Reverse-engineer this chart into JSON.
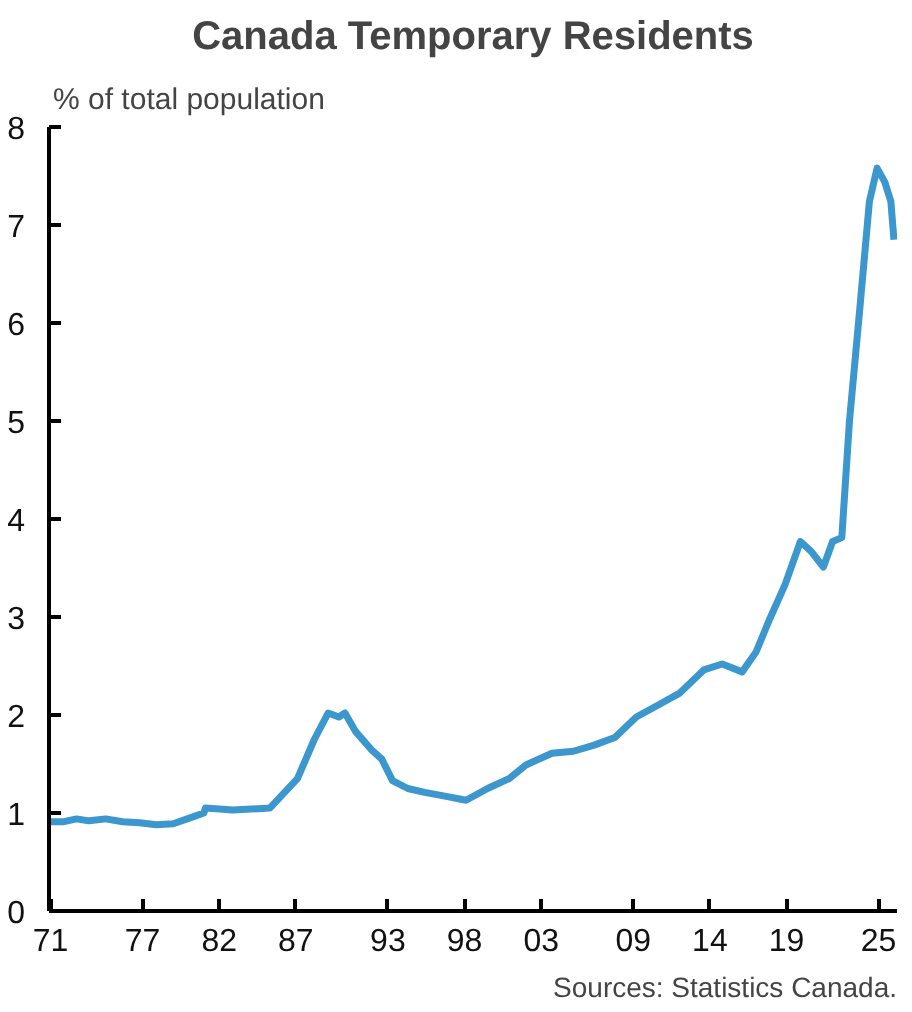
{
  "chart_data": {
    "type": "line",
    "title": "Canada Temporary Residents",
    "subtitle": "% of total population",
    "annotations": [
      "Sources: Statistics Canada."
    ],
    "x": [
      1971.0,
      1971.8,
      1972.7,
      1973.5,
      1974.6,
      1975.7,
      1976.8,
      1977.9,
      1979.0,
      1980.1,
      1981.0,
      1981.1,
      1982.9,
      1985.3,
      1987.1,
      1988.2,
      1989.1,
      1989.8,
      1990.2,
      1990.9,
      1991.9,
      1992.6,
      1993.3,
      1994.3,
      1995.4,
      1996.8,
      1998.1,
      1999.5,
      2000.9,
      2002.0,
      2003.7,
      2005.1,
      2006.4,
      2007.8,
      2009.2,
      2010.6,
      2012.0,
      2013.6,
      2014.8,
      2016.1,
      2017.0,
      2017.9,
      2018.9,
      2019.9,
      2020.6,
      2021.4,
      2022.0,
      2022.6,
      2023.1,
      2023.8,
      2024.4,
      2024.9,
      2025.4,
      2025.8,
      2026.0
    ],
    "series": [
      {
        "color": "#3b97cd",
        "values": [
          0.91,
          0.91,
          0.94,
          0.92,
          0.94,
          0.91,
          0.9,
          0.88,
          0.89,
          0.95,
          1.0,
          1.05,
          1.03,
          1.05,
          1.35,
          1.75,
          2.02,
          1.98,
          2.02,
          1.83,
          1.65,
          1.55,
          1.33,
          1.25,
          1.21,
          1.17,
          1.13,
          1.25,
          1.35,
          1.49,
          1.61,
          1.63,
          1.69,
          1.77,
          1.98,
          2.1,
          2.22,
          2.46,
          2.52,
          2.44,
          2.64,
          2.98,
          3.33,
          3.77,
          3.67,
          3.51,
          3.77,
          3.81,
          5.0,
          6.19,
          7.24,
          7.58,
          7.44,
          7.24,
          6.85
        ]
      }
    ],
    "xlim": [
      1970.9,
      2026.2
    ],
    "xticks": [
      {
        "value": 1971,
        "label": "71"
      },
      {
        "value": 1977,
        "label": "77"
      },
      {
        "value": 1982,
        "label": "82"
      },
      {
        "value": 1987,
        "label": "87"
      },
      {
        "value": 1993,
        "label": "93"
      },
      {
        "value": 1998,
        "label": "98"
      },
      {
        "value": 2003,
        "label": "03"
      },
      {
        "value": 2009,
        "label": "09"
      },
      {
        "value": 2014,
        "label": "14"
      },
      {
        "value": 2019,
        "label": "19"
      },
      {
        "value": 2025,
        "label": "25"
      }
    ],
    "ylim": [
      0,
      8
    ],
    "yticks": [
      0,
      1,
      2,
      3,
      4,
      5,
      6,
      7,
      8
    ],
    "grid": false,
    "marker": "none",
    "line_style": "solid"
  }
}
